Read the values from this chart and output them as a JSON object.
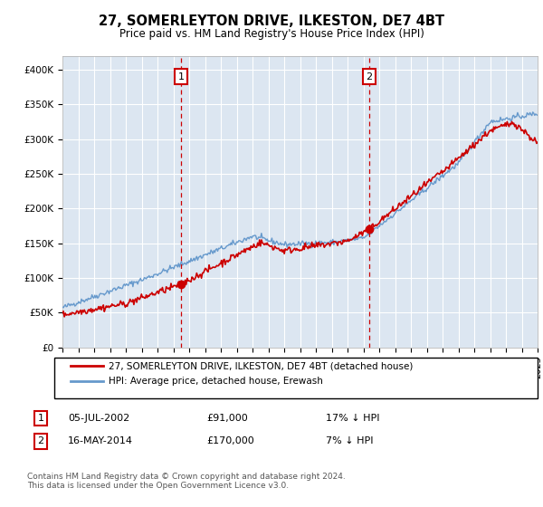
{
  "title": "27, SOMERLEYTON DRIVE, ILKESTON, DE7 4BT",
  "subtitle": "Price paid vs. HM Land Registry's House Price Index (HPI)",
  "legend_line1": "27, SOMERLEYTON DRIVE, ILKESTON, DE7 4BT (detached house)",
  "legend_line2": "HPI: Average price, detached house, Erewash",
  "marker1_date": "05-JUL-2002",
  "marker1_price": "£91,000",
  "marker1_hpi": "17% ↓ HPI",
  "marker1_year": 2002.5,
  "marker1_value": 91000,
  "marker2_date": "16-MAY-2014",
  "marker2_price": "£170,000",
  "marker2_hpi": "7% ↓ HPI",
  "marker2_year": 2014.38,
  "marker2_value": 170000,
  "plot_bg_color": "#dce6f1",
  "red_line_color": "#cc0000",
  "blue_line_color": "#6699cc",
  "marker_box_edge_color": "#cc0000",
  "marker_box_face_color": "#ffffff",
  "marker_box_text_color": "#000000",
  "dashed_line_color": "#cc0000",
  "footer_text": "Contains HM Land Registry data © Crown copyright and database right 2024.\nThis data is licensed under the Open Government Licence v3.0.",
  "ylim": [
    0,
    420000
  ],
  "yticks": [
    0,
    50000,
    100000,
    150000,
    200000,
    250000,
    300000,
    350000,
    400000
  ],
  "ytick_labels": [
    "£0",
    "£50K",
    "£100K",
    "£150K",
    "£200K",
    "£250K",
    "£300K",
    "£350K",
    "£400K"
  ],
  "xlim": [
    1995,
    2025
  ],
  "xticks": [
    1995,
    1996,
    1997,
    1998,
    1999,
    2000,
    2001,
    2002,
    2003,
    2004,
    2005,
    2006,
    2007,
    2008,
    2009,
    2010,
    2011,
    2012,
    2013,
    2014,
    2015,
    2016,
    2017,
    2018,
    2019,
    2020,
    2021,
    2022,
    2023,
    2024,
    2025
  ]
}
